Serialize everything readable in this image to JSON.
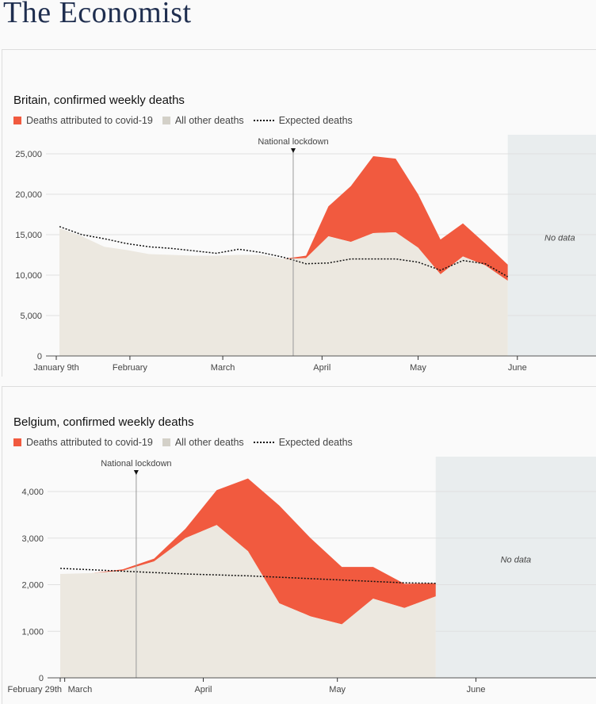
{
  "brand": "The Economist",
  "colors": {
    "covid": "#f15a3f",
    "other": "#ece8e0",
    "expected": "#111111",
    "nodata": "#e9edee",
    "grid": "#e0e0e0"
  },
  "legend": {
    "covid": "Deaths attributed to covid-19",
    "other": "All other deaths",
    "expected": "Expected deaths"
  },
  "chart_data": [
    {
      "type": "area",
      "title": "Britain, confirmed weekly deaths",
      "ylim": [
        0,
        25000
      ],
      "yticks": [
        0,
        5000,
        10000,
        15000,
        20000,
        25000
      ],
      "ytick_labels": [
        "0",
        "5,000",
        "10,000",
        "15,000",
        "20,000",
        "25,000"
      ],
      "xlim": [
        "2020-01-09",
        "2020-06-30"
      ],
      "xticks": [
        {
          "date": "2020-01-09",
          "label": "January 9th"
        },
        {
          "date": "2020-02-01",
          "label": "February"
        },
        {
          "date": "2020-03-01",
          "label": "March"
        },
        {
          "date": "2020-04-01",
          "label": "April"
        },
        {
          "date": "2020-05-01",
          "label": "May"
        },
        {
          "date": "2020-06-01",
          "label": "June"
        }
      ],
      "start": "2020-01-10",
      "step_days": 7,
      "series": [
        {
          "name": "All other deaths",
          "values": [
            15800,
            14800,
            13500,
            13100,
            12600,
            12500,
            12400,
            12400,
            12500,
            12500,
            12000,
            12100,
            14800,
            14100,
            15200,
            15300,
            13400,
            10100,
            12300,
            11200,
            9300
          ]
        },
        {
          "name": "Deaths attributed to covid-19",
          "total": [
            15800,
            14800,
            13500,
            13100,
            12600,
            12500,
            12400,
            12400,
            12500,
            12500,
            12000,
            12400,
            18500,
            21000,
            24700,
            24400,
            20000,
            14400,
            16400,
            13900,
            11300
          ]
        },
        {
          "name": "Expected deaths",
          "values": [
            16000,
            15000,
            14500,
            13900,
            13500,
            13300,
            13000,
            12700,
            13200,
            12800,
            12200,
            11400,
            11500,
            12000,
            12000,
            12000,
            11600,
            10600,
            11800,
            11400,
            9800
          ]
        }
      ],
      "annotation": {
        "label": "National lockdown",
        "date": "2020-03-23"
      },
      "nodata": {
        "label": "No data",
        "from": "2020-05-29"
      }
    },
    {
      "type": "area",
      "title": "Belgium, confirmed weekly deaths",
      "ylim": [
        0,
        4000
      ],
      "yticks": [
        0,
        1000,
        2000,
        3000,
        4000
      ],
      "ytick_labels": [
        "0",
        "1,000",
        "2,000",
        "3,000",
        "4,000"
      ],
      "xlim": [
        "2020-02-29",
        "2020-06-30"
      ],
      "xticks": [
        {
          "date": "2020-02-29",
          "label": "February 29th"
        },
        {
          "date": "2020-03-01",
          "label": "March"
        },
        {
          "date": "2020-04-01",
          "label": "April"
        },
        {
          "date": "2020-05-01",
          "label": "May"
        },
        {
          "date": "2020-06-01",
          "label": "June"
        }
      ],
      "start": "2020-02-29",
      "step_days": 7,
      "series": [
        {
          "name": "All other deaths",
          "values": [
            2230,
            2250,
            2300,
            2500,
            3000,
            3280,
            2720,
            1600,
            1320,
            1150,
            1700,
            1500,
            1750
          ]
        },
        {
          "name": "Deaths attributed to covid-19",
          "total": [
            2230,
            2250,
            2330,
            2560,
            3200,
            4030,
            4280,
            3700,
            3000,
            2380,
            2380,
            2020,
            2030
          ]
        },
        {
          "name": "Expected deaths",
          "values": [
            2350,
            2320,
            2290,
            2260,
            2230,
            2210,
            2190,
            2160,
            2130,
            2100,
            2070,
            2040,
            2030
          ]
        }
      ],
      "annotation": {
        "label": "National lockdown",
        "date": "2020-03-17"
      },
      "nodata": {
        "label": "No data",
        "from": "2020-05-23"
      }
    }
  ]
}
